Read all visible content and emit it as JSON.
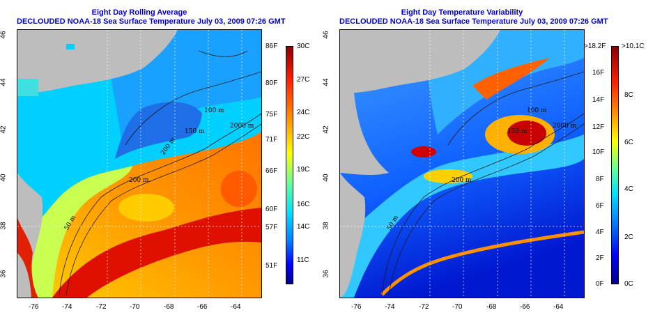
{
  "left_panel": {
    "title_line1": "Eight Day Rolling Average",
    "title_line2": "DECLOUDED NOAA-18 Sea Surface Temperature July 03, 2009 07:26 GMT",
    "x_ticks": [
      "-76",
      "-74",
      "-72",
      "-70",
      "-68",
      "-66",
      "-64"
    ],
    "y_ticks": [
      "46",
      "44",
      "42",
      "40",
      "38",
      "36"
    ],
    "contour_labels": [
      "100 m",
      "2000 m",
      "150 m",
      "200 m",
      "200 m",
      "50 m"
    ],
    "colorbar_f": [
      "86F",
      "80F",
      "75F",
      "71F",
      "66F",
      "60F",
      "57F",
      "51F"
    ],
    "colorbar_c": [
      "30C",
      "27C",
      "24C",
      "22C",
      "19C",
      "16C",
      "14C",
      "11C"
    ]
  },
  "right_panel": {
    "title_line1": "Eight Day Temperature Variability",
    "title_line2": "DECLOUDED NOAA-18 Sea Surface Temperature July 03, 2009 07:26 GMT",
    "x_ticks": [
      "-76",
      "-74",
      "-72",
      "-70",
      "-68",
      "-66",
      "-64"
    ],
    "y_ticks": [
      "46",
      "44",
      "42",
      "40",
      "38",
      "36"
    ],
    "contour_labels": [
      "100 m",
      "2000 m",
      "150 m",
      "200 m",
      "50 m"
    ],
    "colorbar_f": [
      ">18.2F",
      "16F",
      "14F",
      "12F",
      "10F",
      "8F",
      "6F",
      "4F",
      "2F",
      "0F"
    ],
    "colorbar_c": [
      ">10.1C",
      "8C",
      "6C",
      "4C",
      "2C",
      "0C"
    ]
  },
  "colors": {
    "title": "#0000c8",
    "land": "#bdbdbd",
    "palette": [
      "#00008c",
      "#0000ff",
      "#0080ff",
      "#00e0ff",
      "#60ffa0",
      "#ffff00",
      "#ff9000",
      "#ff2000",
      "#8c0000"
    ]
  }
}
